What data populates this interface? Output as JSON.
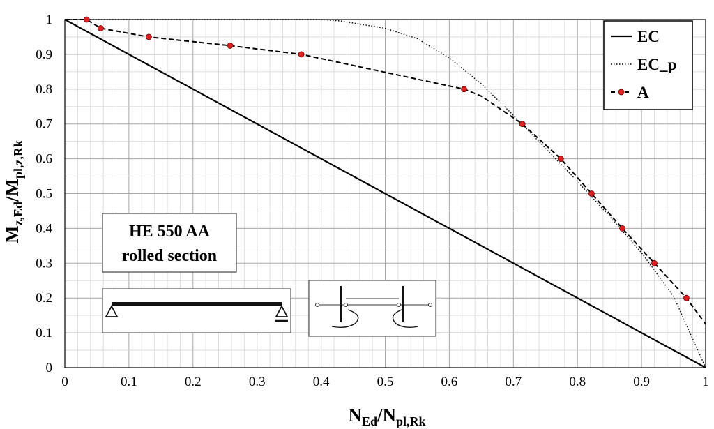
{
  "chart_data": {
    "type": "line",
    "title": "",
    "xlim": [
      0,
      1
    ],
    "ylim": [
      0,
      1
    ],
    "xticks": [
      "0",
      "0.1",
      "0.2",
      "0.3",
      "0.4",
      "0.5",
      "0.6",
      "0.7",
      "0.8",
      "0.9",
      "1"
    ],
    "yticks": [
      "0",
      "0.1",
      "0.2",
      "0.3",
      "0.4",
      "0.5",
      "0.6",
      "0.7",
      "0.8",
      "0.9",
      "1"
    ],
    "xlabel": {
      "main": "N",
      "sub1": "Ed",
      "mid": "/N",
      "sub2": "pl,Rk"
    },
    "ylabel": {
      "main": "M",
      "sub1": "z,Ed",
      "mid": "/M",
      "sub2": "pl,z,Rk"
    },
    "grid": true,
    "legend_position": "top-right",
    "series": [
      {
        "name": "EC",
        "style": "solid",
        "color": "#000000",
        "markers": false,
        "x": [
          0,
          1
        ],
        "y": [
          1,
          0
        ]
      },
      {
        "name": "EC_p",
        "style": "dotted",
        "color": "#000000",
        "markers": false,
        "x": [
          0,
          0.1,
          0.2,
          0.3,
          0.4,
          0.43,
          0.5,
          0.55,
          0.6,
          0.65,
          0.7,
          0.75,
          0.8,
          0.85,
          0.9,
          0.95,
          1.0
        ],
        "y": [
          1,
          1,
          1,
          1,
          1,
          0.996,
          0.975,
          0.945,
          0.89,
          0.815,
          0.725,
          0.63,
          0.535,
          0.435,
          0.33,
          0.205,
          0
        ]
      },
      {
        "name": "A",
        "style": "dashed",
        "color": "#000000",
        "marker_color": "#e02020",
        "markers": true,
        "marker_x": [
          0.034,
          0.056,
          0.131,
          0.258,
          0.369,
          0.623,
          0.714,
          0.774,
          0.822,
          0.87,
          0.92,
          0.97
        ],
        "marker_y": [
          1.0,
          0.975,
          0.95,
          0.925,
          0.9,
          0.8,
          0.7,
          0.6,
          0.5,
          0.4,
          0.3,
          0.2
        ],
        "x": [
          0,
          0.034,
          0.056,
          0.131,
          0.258,
          0.369,
          0.623,
          0.65,
          0.714,
          0.774,
          0.822,
          0.87,
          0.92,
          0.97,
          1.0
        ],
        "y": [
          1.0,
          1.0,
          0.975,
          0.95,
          0.925,
          0.9,
          0.8,
          0.78,
          0.7,
          0.6,
          0.5,
          0.4,
          0.3,
          0.2,
          0.125
        ]
      }
    ]
  },
  "annotation": {
    "line1": "HE 550 AA",
    "line2": "rolled section"
  },
  "colors": {
    "grid_major": "#a8a8a8",
    "grid_minor": "#d6d6d6",
    "marker": "#e02020"
  }
}
